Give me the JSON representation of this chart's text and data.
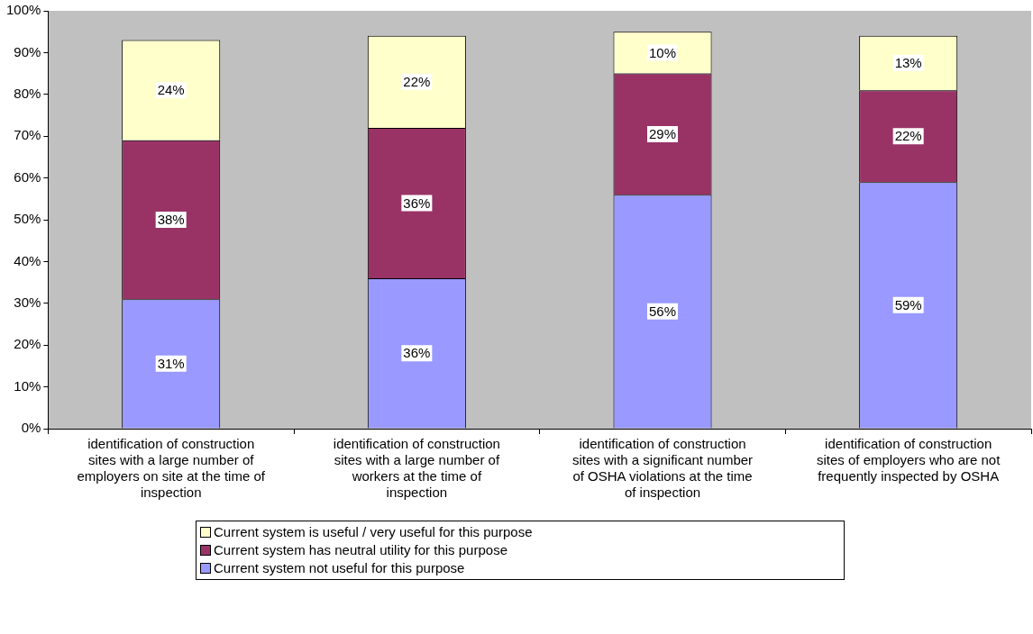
{
  "chart_data": {
    "type": "bar",
    "stacked": true,
    "legend": "bottom",
    "categories": [
      "identification of construction sites with a large number of employers on site at the time of inspection",
      "identification of construction sites with a large number of workers at the time of inspection",
      "identification of construction sites with a significant number of OSHA violations at the time of inspection",
      "identification of construction sites of employers who are not frequently inspected by OSHA"
    ],
    "series": [
      {
        "name": "Current system not useful for this purpose",
        "color": "#9999ff",
        "values": [
          31,
          36,
          56,
          59
        ],
        "value_labels": [
          "31%",
          "36%",
          "56%",
          "59%"
        ]
      },
      {
        "name": "Current system has neutral utility for this purpose",
        "color": "#993366",
        "values": [
          38,
          36,
          29,
          22
        ],
        "value_labels": [
          "38%",
          "36%",
          "29%",
          "22%"
        ]
      },
      {
        "name": "Current system is useful / very useful for this purpose",
        "color": "#ffffcc",
        "values": [
          24,
          22,
          10,
          13
        ],
        "value_labels": [
          "24%",
          "22%",
          "10%",
          "13%"
        ]
      }
    ],
    "ylim": [
      0,
      100
    ],
    "yticks": [
      {
        "value": 0,
        "label": "0%"
      },
      {
        "value": 10,
        "label": "10%"
      },
      {
        "value": 20,
        "label": "20%"
      },
      {
        "value": 30,
        "label": "30%"
      },
      {
        "value": 40,
        "label": "40%"
      },
      {
        "value": 50,
        "label": "50%"
      },
      {
        "value": 60,
        "label": "60%"
      },
      {
        "value": 70,
        "label": "70%"
      },
      {
        "value": 80,
        "label": "80%"
      },
      {
        "value": 90,
        "label": "90%"
      },
      {
        "value": 100,
        "label": "100%"
      }
    ]
  }
}
